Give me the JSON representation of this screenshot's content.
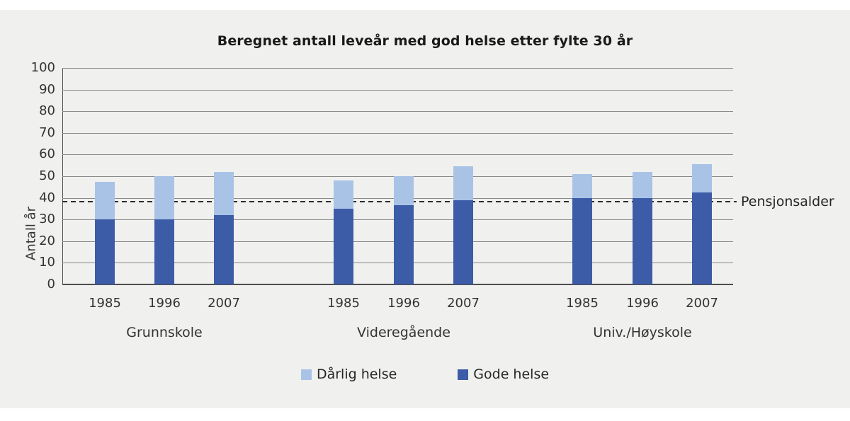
{
  "figure": {
    "title": "Beregnet antall leveår med god helse etter fylte 30 år",
    "panel_background": "#f0f0ef"
  },
  "chart_data": {
    "type": "bar",
    "stacked": true,
    "title": "Beregnet antall leveår med god helse etter fylte 30 år",
    "xlabel": "",
    "ylabel": "Antall år",
    "ylim": [
      0,
      100
    ],
    "yticks": [
      0,
      10,
      20,
      30,
      40,
      50,
      60,
      70,
      80,
      90,
      100
    ],
    "grid": "horizontal",
    "legend_position": "bottom",
    "categories": [
      "Grunnskole 1985",
      "Grunnskole 1996",
      "Grunnskole 2007",
      "Videregående 1985",
      "Videregående 1996",
      "Videregående 2007",
      "Univ./Høyskole 1985",
      "Univ./Høyskole 1996",
      "Univ./Høyskole 2007"
    ],
    "groups": [
      {
        "label": "Grunnskole",
        "years": [
          "1985",
          "1996",
          "2007"
        ],
        "gode_helse": [
          30,
          30,
          32
        ],
        "darlig_helse": [
          17.5,
          20,
          20
        ]
      },
      {
        "label": "Videregående",
        "years": [
          "1985",
          "1996",
          "2007"
        ],
        "gode_helse": [
          35,
          36.5,
          39
        ],
        "darlig_helse": [
          13,
          13.5,
          15.5
        ]
      },
      {
        "label": "Univ./Høyskole",
        "years": [
          "1985",
          "1996",
          "2007"
        ],
        "gode_helse": [
          40,
          40,
          42.5
        ],
        "darlig_helse": [
          11,
          12,
          13
        ]
      }
    ],
    "series": [
      {
        "name": "Gode helse",
        "color": "#3c5ca8",
        "values": [
          30,
          30,
          32,
          35,
          36.5,
          39,
          40,
          40,
          42.5
        ]
      },
      {
        "name": "Dårlig helse",
        "color": "#a9c3e6",
        "values": [
          17.5,
          20,
          20,
          13,
          13.5,
          15.5,
          11,
          12,
          13
        ]
      }
    ],
    "annotation": {
      "label": "Pensjonsalder",
      "value": 38.3,
      "style": "dashed-line"
    }
  },
  "legend": {
    "items": [
      {
        "label": "Dårlig helse",
        "color": "#a9c3e6"
      },
      {
        "label": "Gode helse",
        "color": "#3c5ca8"
      }
    ]
  },
  "colors": {
    "good_health": "#3c5ca8",
    "poor_health": "#a9c3e6",
    "gridline": "#8a8a8a",
    "axis": "#4d4d4d",
    "dashed_line": "#2b2b2b",
    "text": "#333333"
  }
}
